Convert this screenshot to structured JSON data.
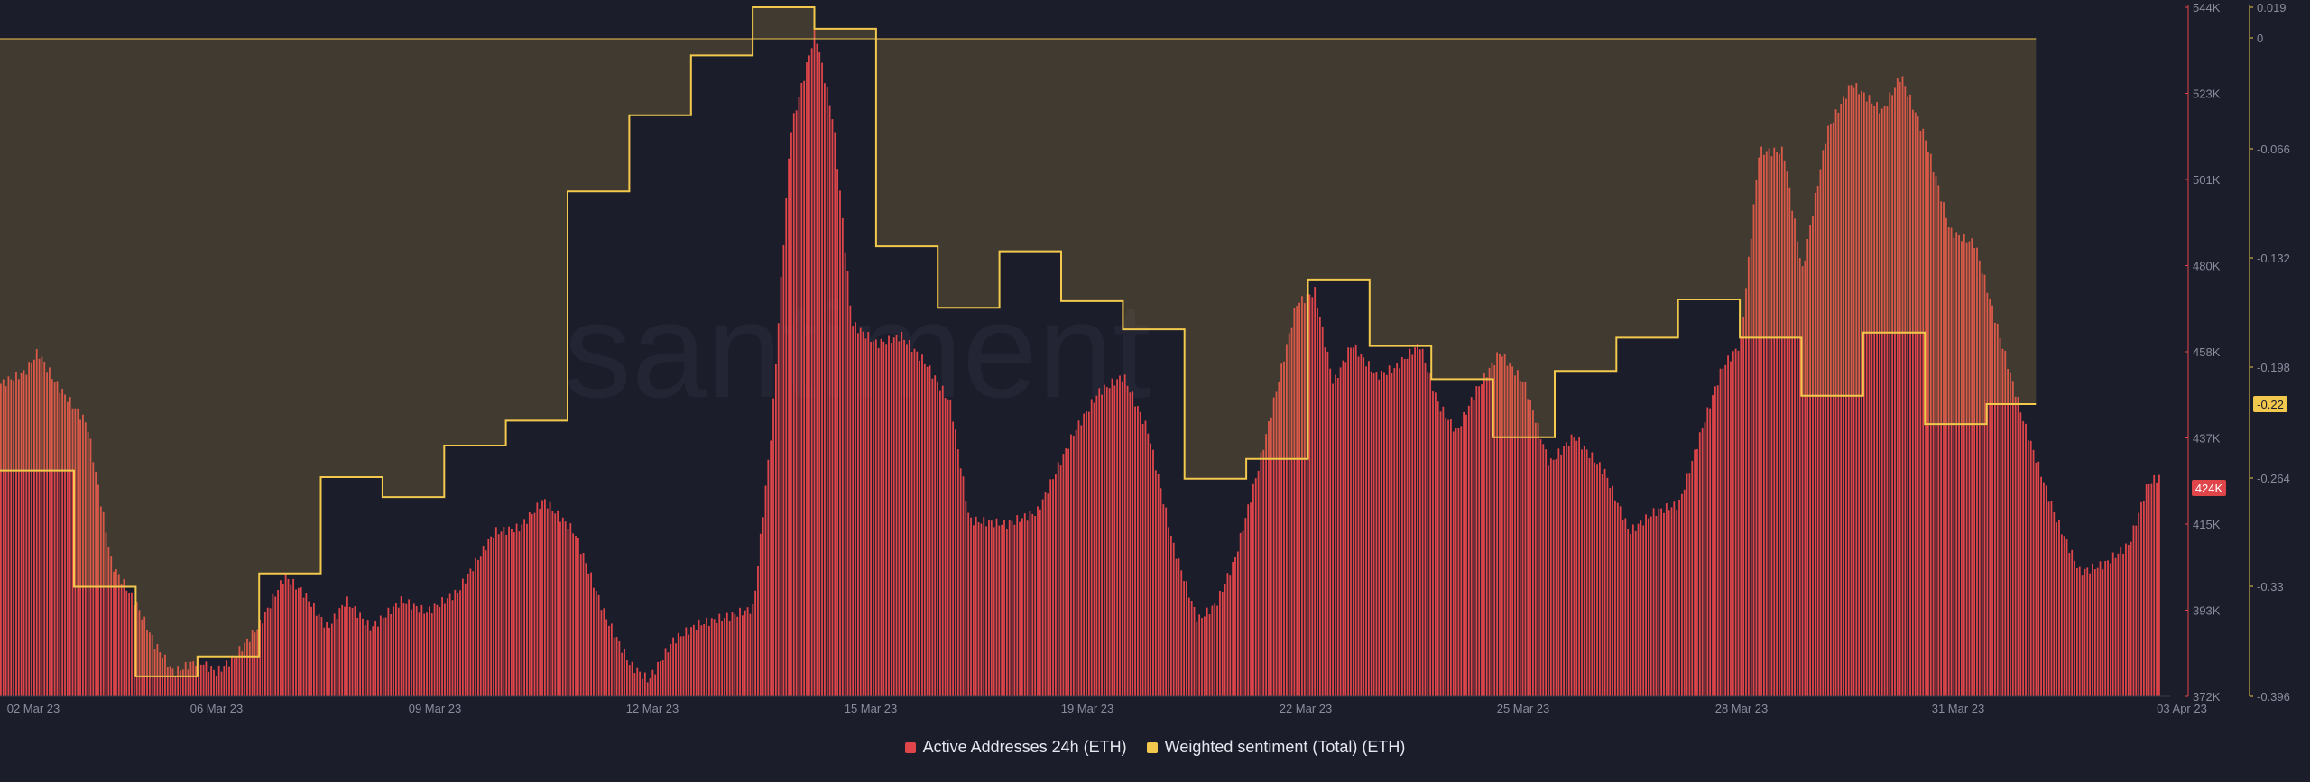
{
  "chart_data": {
    "type": "bar+line",
    "watermark": "santiment",
    "x_ticks": [
      "02 Mar 23",
      "06 Mar 23",
      "09 Mar 23",
      "12 Mar 23",
      "15 Mar 23",
      "19 Mar 23",
      "22 Mar 23",
      "25 Mar 23",
      "28 Mar 23",
      "31 Mar 23",
      "03 Apr 23"
    ],
    "left_axis": {
      "ticks": [
        "544K",
        "523K",
        "501K",
        "480K",
        "458K",
        "437K",
        "415K",
        "393K",
        "372K"
      ],
      "range": [
        372000,
        544000
      ],
      "current_label": "424K",
      "current_value": 424000,
      "color": "#e0454a"
    },
    "right_axis": {
      "ticks": [
        "0.019",
        "0",
        "-0.066",
        "-0.132",
        "-0.198",
        "-0.264",
        "-0.33",
        "-0.396"
      ],
      "range": [
        -0.396,
        0.019
      ],
      "current_label": "-0.22",
      "current_value": -0.22,
      "color": "#f2c94c"
    },
    "series": [
      {
        "name": "Active Addresses 24h (ETH)",
        "type": "bar",
        "color": "#e0454a",
        "range": [
          "02 Mar 23",
          "03 Apr 23"
        ],
        "keypoints": [
          [
            0,
            450
          ],
          [
            0.4,
            453
          ],
          [
            0.6,
            458
          ],
          [
            0.9,
            450
          ],
          [
            1.4,
            440
          ],
          [
            1.8,
            405
          ],
          [
            2.2,
            395
          ],
          [
            2.5,
            385
          ],
          [
            2.8,
            378
          ],
          [
            3.2,
            381
          ],
          [
            3.5,
            378
          ],
          [
            3.8,
            382
          ],
          [
            4.2,
            390
          ],
          [
            4.6,
            402
          ],
          [
            4.9,
            398
          ],
          [
            5.3,
            389
          ],
          [
            5.6,
            396
          ],
          [
            6.0,
            389
          ],
          [
            6.5,
            396
          ],
          [
            6.9,
            393
          ],
          [
            7.4,
            398
          ],
          [
            8.0,
            413
          ],
          [
            8.4,
            414
          ],
          [
            8.8,
            421
          ],
          [
            9.3,
            413
          ],
          [
            9.8,
            392
          ],
          [
            10.2,
            380
          ],
          [
            10.5,
            376
          ],
          [
            10.9,
            386
          ],
          [
            11.3,
            390
          ],
          [
            11.8,
            392
          ],
          [
            12.2,
            394
          ],
          [
            12.5,
            440
          ],
          [
            12.8,
            513
          ],
          [
            13.2,
            538
          ],
          [
            13.5,
            515
          ],
          [
            13.8,
            465
          ],
          [
            14.2,
            460
          ],
          [
            14.6,
            462
          ],
          [
            15.0,
            455
          ],
          [
            15.4,
            445
          ],
          [
            15.7,
            416
          ],
          [
            16.3,
            415
          ],
          [
            16.8,
            418
          ],
          [
            17.4,
            438
          ],
          [
            17.8,
            448
          ],
          [
            18.2,
            452
          ],
          [
            18.6,
            438
          ],
          [
            19.0,
            410
          ],
          [
            19.4,
            391
          ],
          [
            19.7,
            395
          ],
          [
            20.0,
            406
          ],
          [
            20.4,
            430
          ],
          [
            21.0,
            470
          ],
          [
            21.3,
            473
          ],
          [
            21.6,
            450
          ],
          [
            21.9,
            460
          ],
          [
            22.3,
            452
          ],
          [
            22.6,
            454
          ],
          [
            23.0,
            460
          ],
          [
            23.3,
            445
          ],
          [
            23.6,
            438
          ],
          [
            23.9,
            448
          ],
          [
            24.3,
            458
          ],
          [
            24.7,
            450
          ],
          [
            25.1,
            430
          ],
          [
            25.5,
            437
          ],
          [
            26.0,
            428
          ],
          [
            26.4,
            413
          ],
          [
            26.8,
            418
          ],
          [
            27.2,
            420
          ],
          [
            27.6,
            440
          ],
          [
            27.9,
            454
          ],
          [
            28.2,
            460
          ],
          [
            28.5,
            508
          ],
          [
            28.9,
            508
          ],
          [
            29.2,
            478
          ],
          [
            29.6,
            513
          ],
          [
            30.0,
            525
          ],
          [
            30.5,
            518
          ],
          [
            30.8,
            527
          ],
          [
            31.2,
            511
          ],
          [
            31.6,
            488
          ],
          [
            32.0,
            485
          ],
          [
            32.4,
            462
          ],
          [
            32.8,
            440
          ],
          [
            33.3,
            417
          ],
          [
            33.7,
            403
          ],
          [
            34.1,
            405
          ],
          [
            34.5,
            410
          ],
          [
            34.8,
            425
          ],
          [
            35.0,
            427
          ]
        ]
      },
      {
        "name": "Weighted sentiment (Total) (ETH)",
        "type": "step-line",
        "color": "#f2c94c",
        "steps": [
          [
            0,
            -0.26
          ],
          [
            1.2,
            -0.33
          ],
          [
            2.2,
            -0.384
          ],
          [
            3.2,
            -0.372
          ],
          [
            4.2,
            -0.322
          ],
          [
            5.2,
            -0.264
          ],
          [
            6.2,
            -0.276
          ],
          [
            7.2,
            -0.245
          ],
          [
            8.2,
            -0.23
          ],
          [
            9.2,
            -0.092
          ],
          [
            10.2,
            -0.046
          ],
          [
            11.2,
            -0.01
          ],
          [
            12.2,
            0.019
          ],
          [
            13.2,
            0.006
          ],
          [
            14.2,
            -0.125
          ],
          [
            15.2,
            -0.162
          ],
          [
            16.2,
            -0.128
          ],
          [
            17.2,
            -0.158
          ],
          [
            18.2,
            -0.175
          ],
          [
            19.2,
            -0.265
          ],
          [
            20.2,
            -0.253
          ],
          [
            21.2,
            -0.145
          ],
          [
            22.2,
            -0.185
          ],
          [
            23.2,
            -0.205
          ],
          [
            24.2,
            -0.24
          ],
          [
            25.2,
            -0.2
          ],
          [
            26.2,
            -0.18
          ],
          [
            27.2,
            -0.157
          ],
          [
            28.2,
            -0.18
          ],
          [
            29.2,
            -0.215
          ],
          [
            30.2,
            -0.177
          ],
          [
            31.2,
            -0.232
          ],
          [
            32.2,
            -0.22
          ]
        ]
      }
    ],
    "x_domain": [
      0,
      35
    ],
    "sentiment_shade_top": 0.0,
    "sentiment_shade_end": 32.2
  }
}
